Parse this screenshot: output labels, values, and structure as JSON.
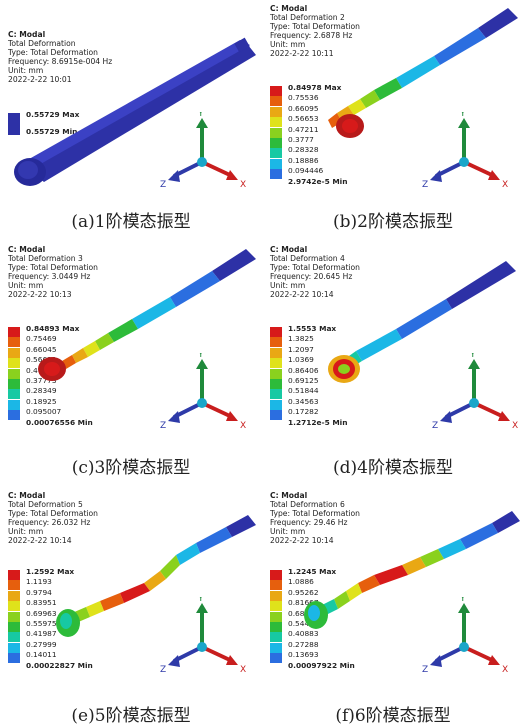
{
  "panels": [
    {
      "app": "C: Modal",
      "title": "Total Deformation",
      "type": "Type: Total Deformation",
      "freq": "Frequency: 8.6915e-004 Hz",
      "unit": "Unit: mm",
      "date": "2022-2-22 10:01",
      "legend": [
        "0.55729 Max",
        "0.55729 Min"
      ],
      "caption": "(a)1阶模态振型"
    },
    {
      "app": "C: Modal",
      "title": "Total Deformation 2",
      "type": "Type: Total Deformation",
      "freq": "Frequency: 2.6878 Hz",
      "unit": "Unit: mm",
      "date": "2022-2-22 10:11",
      "legend": [
        "0.84978 Max",
        "0.75536",
        "0.66095",
        "0.56653",
        "0.47211",
        "0.3777",
        "0.28328",
        "0.18886",
        "0.094446",
        "2.9742e-5 Min"
      ],
      "caption": "(b)2阶模态振型"
    },
    {
      "app": "C: Modal",
      "title": "Total Deformation 3",
      "type": "Type: Total Deformation",
      "freq": "Frequency: 3.0449 Hz",
      "unit": "Unit: mm",
      "date": "2022-2-22 10:13",
      "legend": [
        "0.84893 Max",
        "0.75469",
        "0.66045",
        "0.56621",
        "0.47197",
        "0.37773",
        "0.28349",
        "0.18925",
        "0.095007",
        "0.00076556 Min"
      ],
      "caption": "(c)3阶模态振型"
    },
    {
      "app": "C: Modal",
      "title": "Total Deformation 4",
      "type": "Type: Total Deformation",
      "freq": "Frequency: 20.645 Hz",
      "unit": "Unit: mm",
      "date": "2022-2-22 10:14",
      "legend": [
        "1.5553 Max",
        "1.3825",
        "1.2097",
        "1.0369",
        "0.86406",
        "0.69125",
        "0.51844",
        "0.34563",
        "0.17282",
        "1.2712e-5 Min"
      ],
      "caption": "(d)4阶模态振型"
    },
    {
      "app": "C: Modal",
      "title": "Total Deformation 5",
      "type": "Type: Total Deformation",
      "freq": "Frequency: 26.032 Hz",
      "unit": "Unit: mm",
      "date": "2022-2-22 10:14",
      "legend": [
        "1.2592 Max",
        "1.1193",
        "0.9794",
        "0.83951",
        "0.69963",
        "0.55975",
        "0.41987",
        "0.27999",
        "0.14011",
        "0.00022827 Min"
      ],
      "caption": "(e)5阶模态振型"
    },
    {
      "app": "C: Modal",
      "title": "Total Deformation 6",
      "type": "Type: Total Deformation",
      "freq": "Frequency: 29.46 Hz",
      "unit": "Unit: mm",
      "date": "2022-2-22 10:14",
      "legend": [
        "1.2245 Max",
        "1.0886",
        "0.95262",
        "0.81667",
        "0.68072",
        "0.54477",
        "0.40883",
        "0.27288",
        "0.13693",
        "0.00097922 Min"
      ],
      "caption": "(f)6阶模态振型"
    }
  ],
  "scale_colors": [
    "#d71a1a",
    "#e65f0d",
    "#e9a814",
    "#dfe21b",
    "#8ad11e",
    "#2dbb3a",
    "#17c9a3",
    "#1bb7e6",
    "#2b6ee0",
    "#2d31a6"
  ],
  "axis": {
    "x": "X",
    "y": "Y",
    "z": "Z"
  }
}
